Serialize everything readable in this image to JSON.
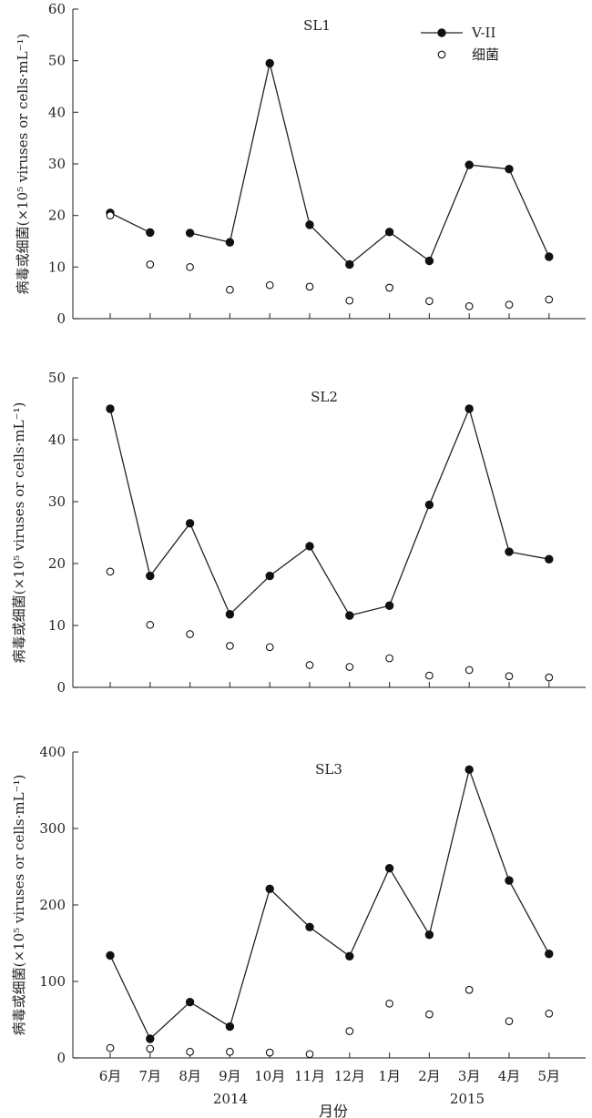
{
  "chart_data": [
    {
      "type": "line",
      "title": "SL1",
      "ylabel": "病毒或细菌(×10⁵ viruses or cells·mL⁻¹)",
      "ylim": [
        0,
        60
      ],
      "yticks": [
        0,
        10,
        20,
        30,
        40,
        50,
        60
      ],
      "categories": [
        "6月",
        "7月",
        "8月",
        "9月",
        "10月",
        "11月",
        "12月",
        "1月",
        "2月",
        "3月",
        "4月",
        "5月"
      ],
      "line_breaks": [
        1
      ],
      "legend": {
        "position": "top-right",
        "entries": [
          "V-II",
          "细菌"
        ]
      },
      "series": [
        {
          "name": "V-II",
          "marker": "filled-circle",
          "line": true,
          "values": [
            20.5,
            16.7,
            16.6,
            14.8,
            49.5,
            18.2,
            10.5,
            16.8,
            11.2,
            29.8,
            29.0,
            12.0
          ]
        },
        {
          "name": "细菌",
          "marker": "open-circle",
          "line": false,
          "values": [
            20.0,
            10.5,
            10.0,
            5.6,
            6.5,
            6.2,
            3.5,
            6.0,
            3.4,
            2.4,
            2.7,
            3.7
          ]
        }
      ]
    },
    {
      "type": "line",
      "title": "SL2",
      "ylabel": "病毒或细菌(×10⁵ viruses or cells·mL⁻¹)",
      "ylim": [
        0,
        50
      ],
      "yticks": [
        0,
        10,
        20,
        30,
        40,
        50
      ],
      "categories": [
        "6月",
        "7月",
        "8月",
        "9月",
        "10月",
        "11月",
        "12月",
        "1月",
        "2月",
        "3月",
        "4月",
        "5月"
      ],
      "series": [
        {
          "name": "V-II",
          "marker": "filled-circle",
          "line": true,
          "values": [
            45.0,
            18.0,
            26.5,
            11.8,
            18.0,
            22.8,
            11.6,
            13.2,
            29.5,
            45.0,
            21.9,
            20.7
          ]
        },
        {
          "name": "细菌",
          "marker": "open-circle",
          "line": false,
          "values": [
            18.7,
            10.1,
            8.6,
            6.7,
            6.5,
            3.6,
            3.3,
            4.7,
            1.9,
            2.8,
            1.8,
            1.6
          ]
        }
      ]
    },
    {
      "type": "line",
      "title": "SL3",
      "ylabel": "病毒或细菌(×10⁵ viruses or cells·mL⁻¹)",
      "ylim": [
        0,
        400
      ],
      "yticks": [
        0,
        100,
        200,
        300,
        400
      ],
      "categories": [
        "6月",
        "7月",
        "8月",
        "9月",
        "10月",
        "11月",
        "12月",
        "1月",
        "2月",
        "3月",
        "4月",
        "5月"
      ],
      "xlabel": "月份",
      "year_labels": [
        "2014",
        "2015"
      ],
      "series": [
        {
          "name": "V-II",
          "marker": "filled-circle",
          "line": true,
          "values": [
            134,
            25,
            73,
            41,
            221,
            171,
            133,
            248,
            161,
            377,
            232,
            136
          ]
        },
        {
          "name": "细菌",
          "marker": "open-circle",
          "line": false,
          "values": [
            13,
            12,
            8,
            8,
            7,
            5,
            35,
            71,
            57,
            89,
            48,
            58
          ]
        }
      ]
    }
  ]
}
